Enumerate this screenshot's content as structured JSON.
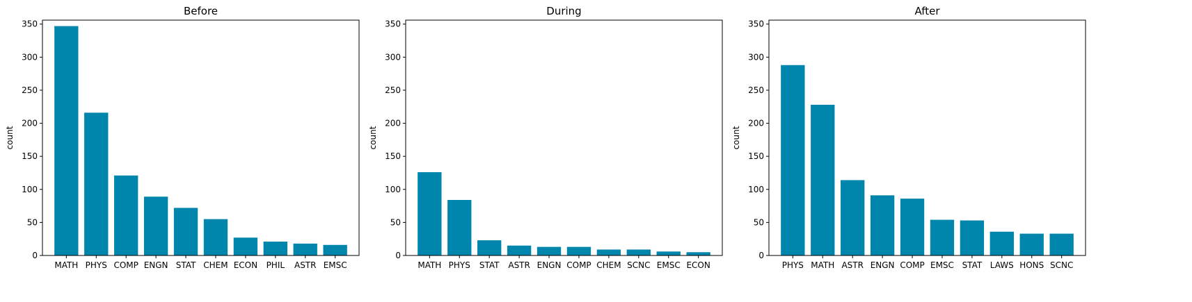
{
  "bar_color": "#0086ad",
  "chart_data": [
    {
      "type": "bar",
      "title": "Before",
      "xlabel": "",
      "ylabel": "count",
      "ylim": [
        0,
        356
      ],
      "yticks": [
        0,
        50,
        100,
        150,
        200,
        250,
        300,
        350
      ],
      "categories": [
        "MATH",
        "PHYS",
        "COMP",
        "ENGN",
        "STAT",
        "CHEM",
        "ECON",
        "PHIL",
        "ASTR",
        "EMSC"
      ],
      "values": [
        347,
        216,
        121,
        89,
        72,
        55,
        27,
        21,
        18,
        16
      ]
    },
    {
      "type": "bar",
      "title": "During",
      "xlabel": "",
      "ylabel": "count",
      "ylim": [
        0,
        356
      ],
      "yticks": [
        0,
        50,
        100,
        150,
        200,
        250,
        300,
        350
      ],
      "categories": [
        "MATH",
        "PHYS",
        "STAT",
        "ASTR",
        "ENGN",
        "COMP",
        "CHEM",
        "SCNC",
        "EMSC",
        "ECON"
      ],
      "values": [
        126,
        84,
        23,
        15,
        13,
        13,
        9,
        9,
        6,
        5
      ]
    },
    {
      "type": "bar",
      "title": "After",
      "xlabel": "",
      "ylabel": "count",
      "ylim": [
        0,
        356
      ],
      "yticks": [
        0,
        50,
        100,
        150,
        200,
        250,
        300,
        350
      ],
      "categories": [
        "PHYS",
        "MATH",
        "ASTR",
        "ENGN",
        "COMP",
        "EMSC",
        "STAT",
        "LAWS",
        "HONS",
        "SCNC"
      ],
      "values": [
        288,
        228,
        114,
        91,
        86,
        54,
        53,
        36,
        33,
        33
      ]
    }
  ]
}
